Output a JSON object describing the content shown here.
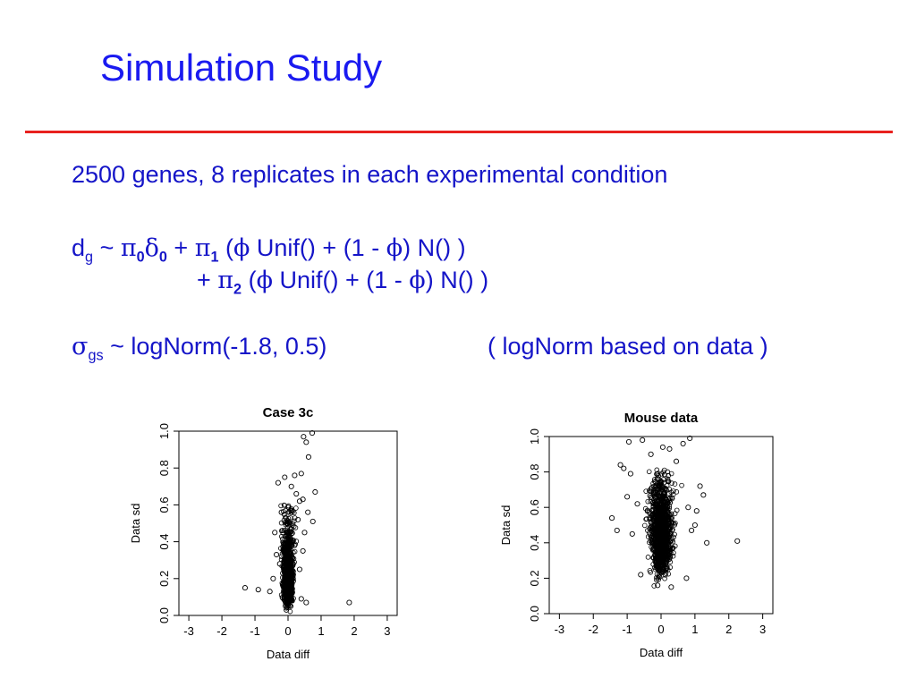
{
  "slide": {
    "title": "Simulation Study",
    "accent_color": "#1a1af0",
    "rule_color": "#e8211e"
  },
  "text": {
    "line1": "2500 genes, 8 replicates in each experimental condition",
    "model_d": "d",
    "model_g": "g",
    "tilde": "~",
    "pi": "π",
    "delta": "δ",
    "phi": "ϕ",
    "sigma": "σ",
    "sub0": "0",
    "sub1": "1",
    "sub2": "2",
    "plus": "+",
    "part_a": "(",
    "unif": "Unif() + (1 -",
    "norm": ") N() )",
    "sigma_sub": "gs",
    "lognorm": "~ logNorm(-1.8, 0.5)",
    "lognorm_note": "( logNorm based on data )"
  },
  "chart_data": [
    {
      "type": "scatter",
      "title": "Case 3c",
      "xlabel": "Data diff",
      "ylabel": "Data sd",
      "xlim": [
        -3.3,
        3.3
      ],
      "ylim": [
        0.0,
        1.0
      ],
      "xticks": [
        "-3",
        "-2",
        "-1",
        "0",
        "1",
        "2",
        "3"
      ],
      "yticks": [
        "0.0",
        "0.2",
        "0.4",
        "0.6",
        "0.8",
        "1.0"
      ],
      "grid": false,
      "points": [
        [
          -1.3,
          0.15
        ],
        [
          -0.9,
          0.14
        ],
        [
          1.85,
          0.07
        ],
        [
          0.73,
          0.99
        ],
        [
          0.47,
          0.97
        ],
        [
          0.55,
          0.94
        ],
        [
          0.82,
          0.67
        ],
        [
          0.75,
          0.51
        ],
        [
          0.4,
          0.77
        ],
        [
          -0.2,
          0.56
        ],
        [
          0.62,
          0.86
        ],
        [
          0.35,
          0.62
        ],
        [
          0.45,
          0.63
        ],
        [
          0.6,
          0.56
        ],
        [
          0.55,
          0.07
        ],
        [
          0.4,
          0.09
        ],
        [
          -0.55,
          0.13
        ],
        [
          -0.45,
          0.2
        ],
        [
          0.3,
          0.52
        ],
        [
          -0.3,
          0.72
        ],
        [
          0.1,
          0.7
        ],
        [
          0.2,
          0.76
        ],
        [
          -0.1,
          0.75
        ],
        [
          0.25,
          0.66
        ],
        [
          0.5,
          0.45
        ],
        [
          -0.4,
          0.45
        ],
        [
          0.45,
          0.35
        ],
        [
          -0.35,
          0.33
        ],
        [
          0.35,
          0.25
        ],
        [
          -0.25,
          0.28
        ],
        [
          0.08,
          0.05
        ],
        [
          -0.05,
          0.03
        ]
      ]
    },
    {
      "type": "scatter",
      "title": "Mouse data",
      "xlabel": "Data diff",
      "ylabel": "Data sd",
      "xlim": [
        -3.3,
        3.3
      ],
      "ylim": [
        0.0,
        1.0
      ],
      "xticks": [
        "-3",
        "-2",
        "-1",
        "0",
        "1",
        "2",
        "3"
      ],
      "yticks": [
        "0.0",
        "0.2",
        "0.4",
        "0.6",
        "0.8",
        "1.0"
      ],
      "grid": false,
      "points": [
        [
          2.25,
          0.41
        ],
        [
          1.35,
          0.4
        ],
        [
          -1.45,
          0.54
        ],
        [
          -1.3,
          0.47
        ],
        [
          1.05,
          0.58
        ],
        [
          0.85,
          0.99
        ],
        [
          0.65,
          0.96
        ],
        [
          -1.2,
          0.84
        ],
        [
          -1.1,
          0.82
        ],
        [
          -0.9,
          0.79
        ],
        [
          1.15,
          0.72
        ],
        [
          1.25,
          0.67
        ],
        [
          -0.55,
          0.98
        ],
        [
          -0.95,
          0.97
        ],
        [
          0.9,
          0.47
        ],
        [
          -0.85,
          0.45
        ],
        [
          0.75,
          0.2
        ],
        [
          -0.6,
          0.22
        ],
        [
          0.3,
          0.15
        ],
        [
          -0.1,
          0.16
        ],
        [
          0.05,
          0.94
        ],
        [
          0.25,
          0.93
        ],
        [
          -0.3,
          0.9
        ],
        [
          0.45,
          0.86
        ],
        [
          -0.7,
          0.62
        ],
        [
          0.8,
          0.6
        ],
        [
          -1.0,
          0.66
        ],
        [
          1.0,
          0.5
        ]
      ]
    }
  ]
}
